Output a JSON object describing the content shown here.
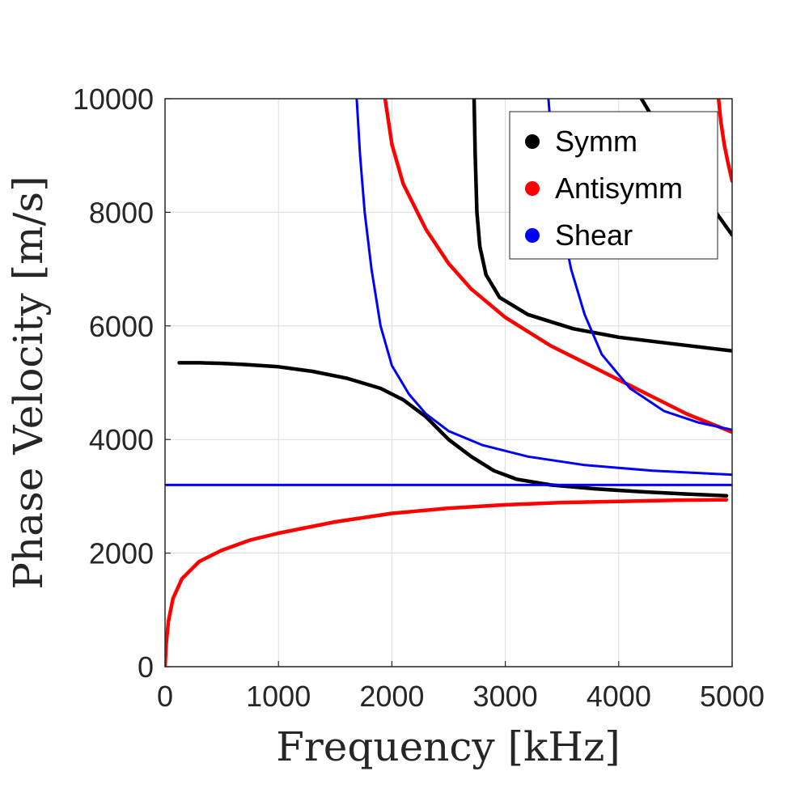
{
  "chart_data": {
    "type": "scatter",
    "xlabel": "Frequency [kHz]",
    "ylabel": "Phase Velocity [m/s]",
    "xlim": [
      0,
      5000
    ],
    "ylim": [
      0,
      10000
    ],
    "x_ticks": [
      "0",
      "1000",
      "2000",
      "3000",
      "4000",
      "5000"
    ],
    "y_ticks": [
      "0",
      "2000",
      "4000",
      "6000",
      "8000",
      "10000"
    ],
    "grid": true,
    "legend_position": "top-right",
    "series": [
      {
        "name": "Symm",
        "color": "#000000",
        "branches": [
          [
            [
              125,
              5350
            ],
            [
              300,
              5350
            ],
            [
              500,
              5340
            ],
            [
              700,
              5320
            ],
            [
              1000,
              5280
            ],
            [
              1300,
              5200
            ],
            [
              1600,
              5080
            ],
            [
              1900,
              4900
            ],
            [
              2100,
              4700
            ],
            [
              2300,
              4400
            ],
            [
              2500,
              4000
            ],
            [
              2700,
              3700
            ],
            [
              2900,
              3450
            ],
            [
              3100,
              3300
            ],
            [
              3400,
              3200
            ],
            [
              3800,
              3130
            ],
            [
              4200,
              3080
            ],
            [
              4600,
              3040
            ],
            [
              4950,
              3010
            ]
          ],
          [
            [
              2725,
              10000
            ],
            [
              2735,
              9000
            ],
            [
              2750,
              8000
            ],
            [
              2775,
              7400
            ],
            [
              2830,
              6900
            ],
            [
              2950,
              6500
            ],
            [
              3200,
              6200
            ],
            [
              3600,
              5950
            ],
            [
              4000,
              5800
            ],
            [
              4500,
              5680
            ],
            [
              5000,
              5560
            ]
          ],
          [
            [
              4200,
              10000
            ],
            [
              4350,
              9500
            ],
            [
              4550,
              8900
            ],
            [
              4750,
              8300
            ],
            [
              5000,
              7600
            ]
          ]
        ]
      },
      {
        "name": "Antisymm",
        "color": "#ff0000",
        "branches": [
          [
            [
              0,
              0
            ],
            [
              10,
              400
            ],
            [
              30,
              800
            ],
            [
              70,
              1200
            ],
            [
              150,
              1550
            ],
            [
              300,
              1850
            ],
            [
              500,
              2050
            ],
            [
              750,
              2230
            ],
            [
              1000,
              2350
            ],
            [
              1500,
              2550
            ],
            [
              2000,
              2700
            ],
            [
              2500,
              2790
            ],
            [
              3000,
              2850
            ],
            [
              3500,
              2890
            ],
            [
              4000,
              2910
            ],
            [
              4500,
              2930
            ],
            [
              4950,
              2940
            ]
          ],
          [
            [
              1940,
              10000
            ],
            [
              2000,
              9200
            ],
            [
              2100,
              8500
            ],
            [
              2300,
              7700
            ],
            [
              2500,
              7100
            ],
            [
              2700,
              6650
            ],
            [
              3000,
              6150
            ],
            [
              3400,
              5650
            ],
            [
              3800,
              5250
            ],
            [
              4200,
              4850
            ],
            [
              4600,
              4450
            ],
            [
              5000,
              4130
            ]
          ],
          [
            [
              4880,
              10000
            ],
            [
              4900,
              9600
            ],
            [
              4930,
              9200
            ],
            [
              4960,
              8900
            ],
            [
              5000,
              8550
            ]
          ]
        ]
      },
      {
        "name": "Shear",
        "color": "#0000ff",
        "branches": [
          [
            [
              0,
              3200
            ],
            [
              5000,
              3200
            ]
          ],
          [
            [
              1690,
              10000
            ],
            [
              1720,
              9000
            ],
            [
              1760,
              8000
            ],
            [
              1820,
              7000
            ],
            [
              1900,
              6000
            ],
            [
              2000,
              5300
            ],
            [
              2150,
              4800
            ],
            [
              2300,
              4450
            ],
            [
              2500,
              4150
            ],
            [
              2800,
              3900
            ],
            [
              3200,
              3700
            ],
            [
              3700,
              3550
            ],
            [
              4300,
              3450
            ],
            [
              5000,
              3380
            ]
          ],
          [
            [
              3380,
              10000
            ],
            [
              3420,
              9000
            ],
            [
              3480,
              8000
            ],
            [
              3580,
              7000
            ],
            [
              3700,
              6200
            ],
            [
              3850,
              5500
            ],
            [
              4100,
              4900
            ],
            [
              4400,
              4500
            ],
            [
              4700,
              4300
            ],
            [
              5000,
              4170
            ]
          ]
        ]
      }
    ]
  }
}
